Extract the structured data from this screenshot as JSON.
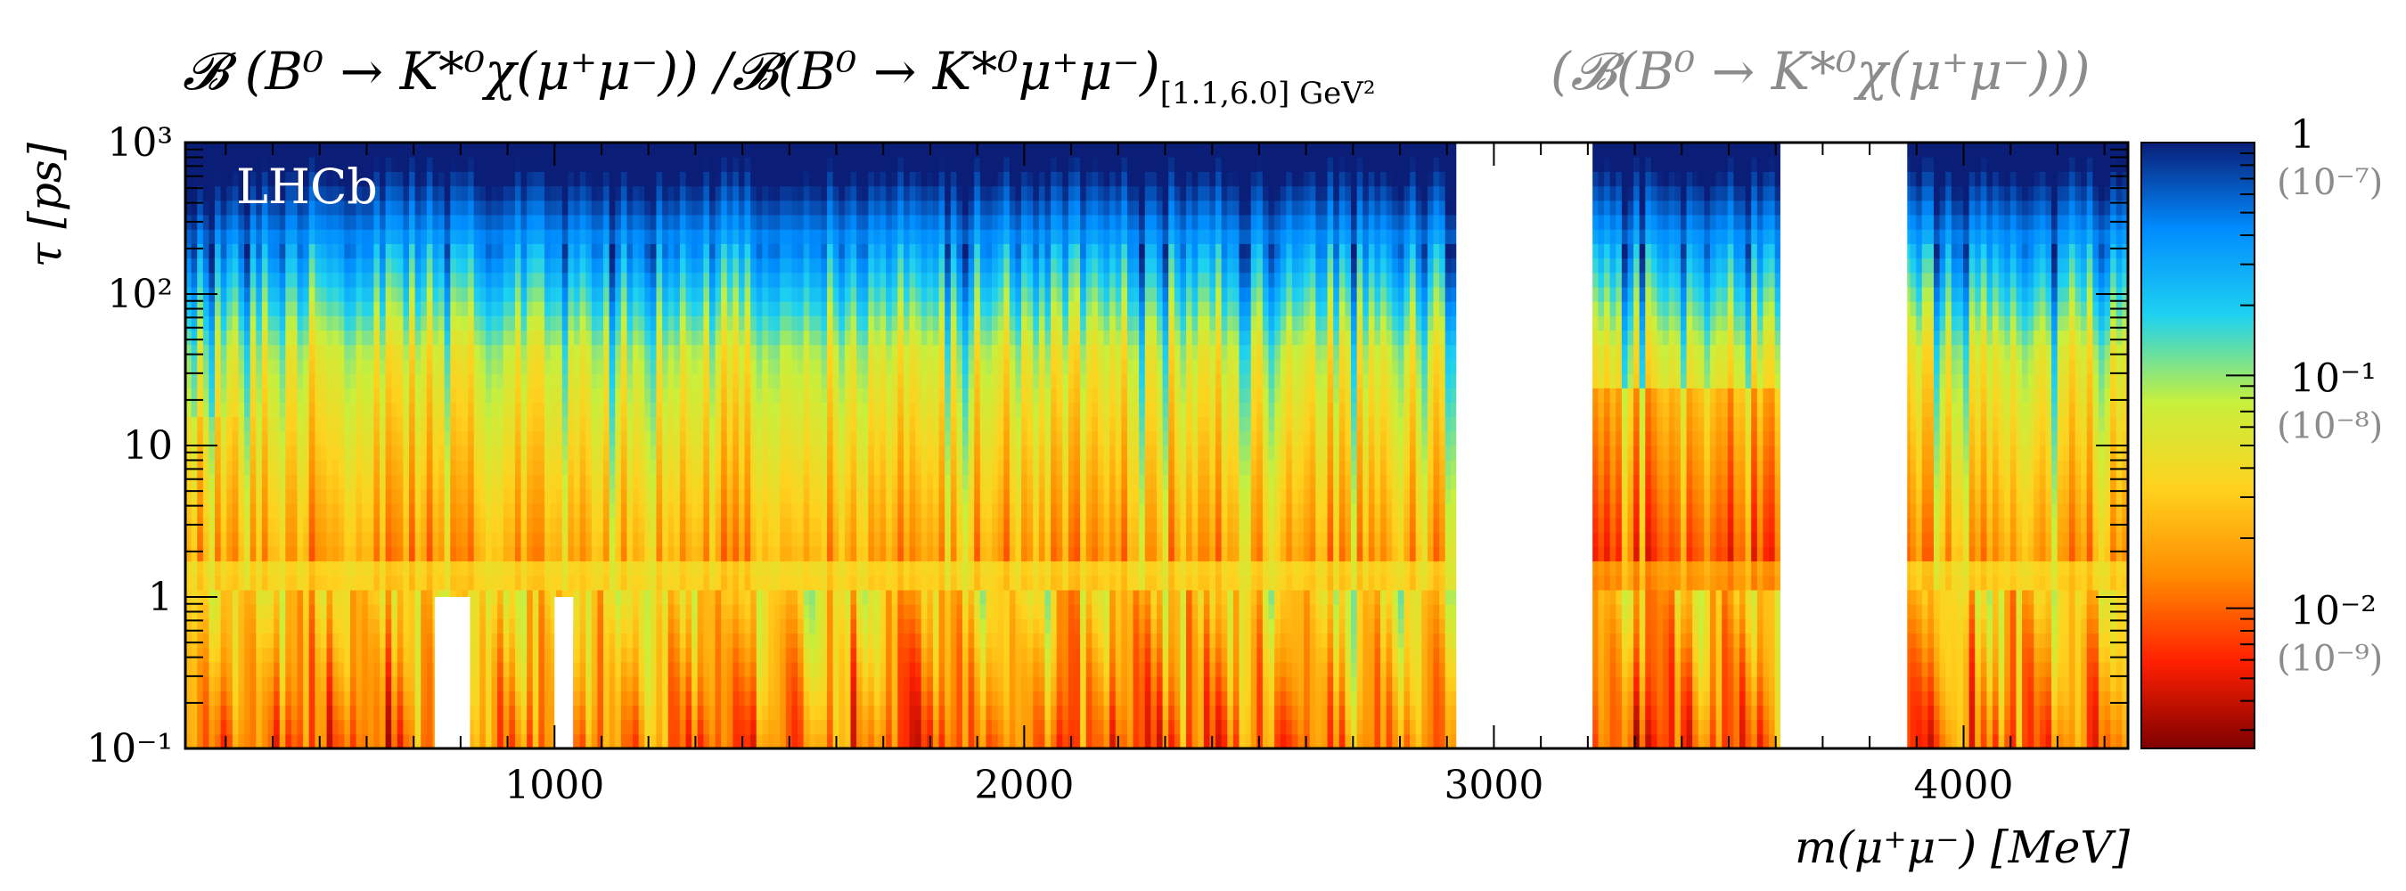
{
  "chart_data": {
    "type": "heatmap",
    "title": "𝓑 (B⁰ → K*⁰χ(μ⁺μ⁻)) /𝓑(B⁰ → K*⁰μ⁺μ⁻)",
    "title_subscript": "[1.1,6.0] GeV²",
    "title_alt": "(𝓑(B⁰ → K*⁰χ(μ⁺μ⁻)))",
    "experiment_label": "LHCb",
    "xlabel": "m(μ⁺μ⁻) [MeV]",
    "ylabel": "τ [ps]",
    "xlim": [
      214,
      4350
    ],
    "ylim": [
      0.1,
      1000
    ],
    "y_scale": "log",
    "x_ticks": [
      {
        "value": 1000,
        "label": "1000"
      },
      {
        "value": 2000,
        "label": "2000"
      },
      {
        "value": 3000,
        "label": "3000"
      },
      {
        "value": 4000,
        "label": "4000"
      }
    ],
    "y_ticks": [
      {
        "value": 0.1,
        "label": "10⁻¹"
      },
      {
        "value": 1,
        "label": "1"
      },
      {
        "value": 10,
        "label": "10"
      },
      {
        "value": 100,
        "label": "10²"
      },
      {
        "value": 1000,
        "label": "10³"
      }
    ],
    "excluded_regions": [
      {
        "x": [
          2920,
          3210
        ],
        "y": [
          0.1,
          1000
        ]
      },
      {
        "x": [
          3610,
          3880
        ],
        "y": [
          0.1,
          1000
        ]
      },
      {
        "x": [
          745,
          820
        ],
        "y": [
          0.1,
          1
        ]
      },
      {
        "x": [
          1000,
          1040
        ],
        "y": [
          0.1,
          1
        ]
      }
    ],
    "colorbar": {
      "scale": "log",
      "range": [
        0.0025,
        1
      ],
      "colors": [
        "#7f0000",
        "#ff2000",
        "#ff8c00",
        "#ffd21e",
        "#c8f03c",
        "#1ed2f0",
        "#008cff",
        "#0a1e78"
      ],
      "ticks": [
        {
          "value": 1,
          "label": "1",
          "alt_label": "(10⁻⁷)"
        },
        {
          "value": 0.1,
          "label": "10⁻¹",
          "alt_label": "(10⁻⁸)"
        },
        {
          "value": 0.01,
          "label": "10⁻²",
          "alt_label": "(10⁻⁹)"
        }
      ]
    }
  }
}
